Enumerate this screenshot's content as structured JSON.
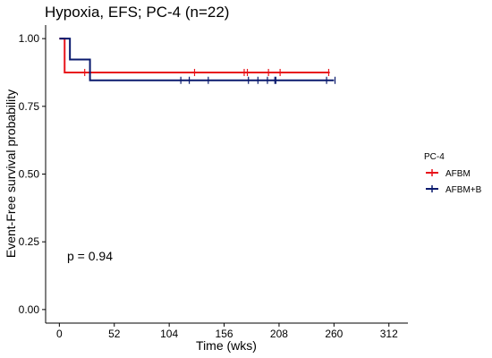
{
  "chart_data": {
    "type": "line",
    "title": "Hypoxia,  EFS; PC-4 (n=22)",
    "xlabel": "Time (wks)",
    "ylabel": "Event-Free survival probability",
    "xlim": [
      -13,
      330
    ],
    "ylim": [
      -0.05,
      1.05
    ],
    "xticks": [
      0,
      52,
      104,
      156,
      208,
      260,
      312
    ],
    "yticks": [
      0.0,
      0.25,
      0.5,
      0.75,
      1.0
    ],
    "ytick_labels": [
      "0.00",
      "0.25",
      "0.50",
      "0.75",
      "1.00"
    ],
    "legend_title": "PC-4",
    "legend_position": "right",
    "annotation": "p = 0.94",
    "series": [
      {
        "name": "AFBM",
        "color": "#e8131a",
        "steps": [
          [
            0,
            1.0
          ],
          [
            5,
            0.875
          ],
          [
            256,
            0.875
          ]
        ],
        "censor": [
          24,
          128,
          175,
          178,
          198,
          209,
          255
        ]
      },
      {
        "name": "AFBM+B",
        "color": "#0a1a6e",
        "steps": [
          [
            0,
            1.0
          ],
          [
            10,
            0.923
          ],
          [
            29,
            0.846
          ],
          [
            260,
            0.846
          ]
        ],
        "censor": [
          115,
          123,
          141,
          179,
          188,
          197,
          204,
          205,
          253,
          261
        ]
      }
    ]
  }
}
